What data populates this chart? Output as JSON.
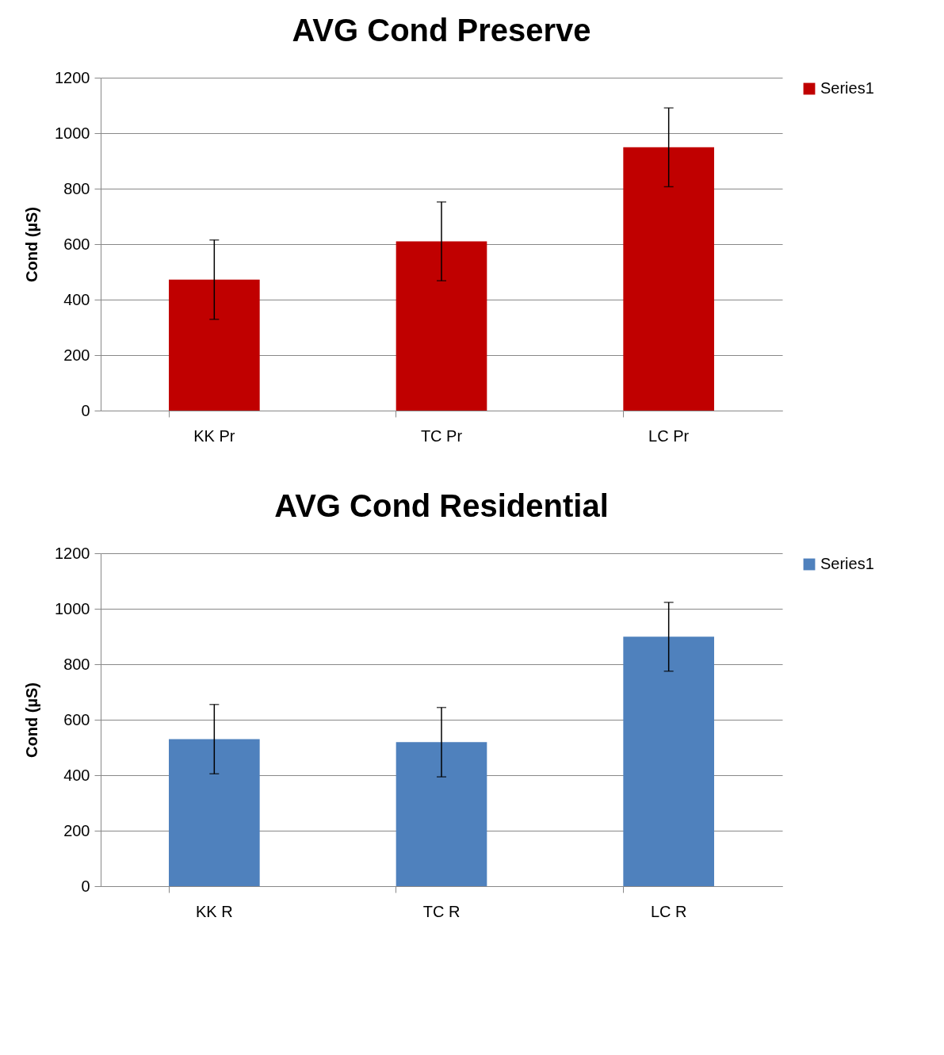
{
  "chart_data": [
    {
      "type": "bar",
      "title": "AVG Cond Preserve",
      "ylabel": "Cond (µS)",
      "categories": [
        "KK Pr",
        "TC Pr",
        "LC Pr"
      ],
      "series": [
        {
          "name": "Series1",
          "color": "#c00000",
          "values": [
            472,
            610,
            949
          ],
          "errors": [
            143,
            142,
            142
          ]
        }
      ],
      "ylim": [
        0,
        1200
      ],
      "yticks": [
        0,
        200,
        400,
        600,
        800,
        1000,
        1200
      ],
      "grid": "y",
      "legend": "right"
    },
    {
      "type": "bar",
      "title": "AVG Cond Residential",
      "ylabel": "Cond (µS)",
      "categories": [
        "KK R",
        "TC R",
        "LC R"
      ],
      "series": [
        {
          "name": "Series1",
          "color": "#4f81bd",
          "values": [
            530,
            519,
            899
          ],
          "errors": [
            125,
            125,
            124
          ]
        }
      ],
      "ylim": [
        0,
        1200
      ],
      "yticks": [
        0,
        200,
        400,
        600,
        800,
        1000,
        1200
      ],
      "grid": "y",
      "legend": "right"
    }
  ]
}
